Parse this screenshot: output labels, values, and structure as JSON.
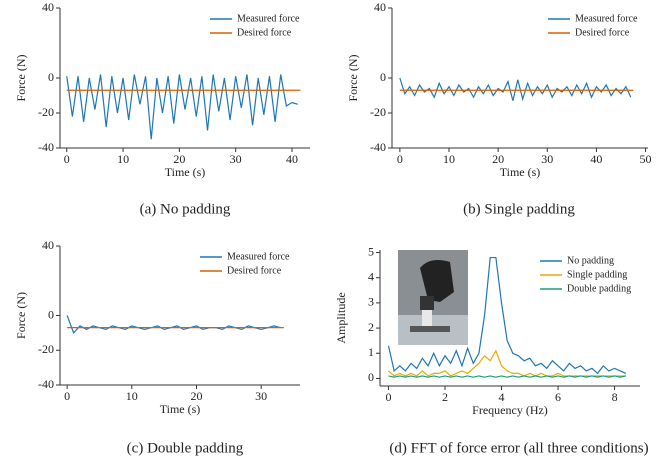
{
  "chart_data": [
    {
      "type": "line",
      "caption": "(a) No padding",
      "xlabel": "Time (s)",
      "ylabel": "Force (N)",
      "xlim": [
        -1.2,
        43.2
      ],
      "ylim": [
        -40,
        40
      ],
      "xticks": [
        0,
        10,
        20,
        30,
        40
      ],
      "yticks": [
        -40,
        -20,
        0,
        40
      ],
      "legend": "upper right",
      "series": [
        {
          "name": "Measured force",
          "color": "#1f77b4",
          "x": [
            0,
            1,
            2,
            3,
            4,
            5,
            6,
            7,
            8,
            9,
            10,
            11,
            12,
            13,
            14,
            15,
            16,
            17,
            18,
            19,
            20,
            21,
            22,
            23,
            24,
            25,
            26,
            27,
            28,
            29,
            30,
            31,
            32,
            33,
            34,
            35,
            36,
            37,
            38,
            39,
            40,
            41
          ],
          "values": [
            1,
            -22,
            1,
            -25,
            0,
            -18,
            2,
            -28,
            1,
            -20,
            0,
            -24,
            2,
            -15,
            1,
            -35,
            0,
            -20,
            1,
            -26,
            2,
            -18,
            0,
            -22,
            1,
            -30,
            2,
            -19,
            0,
            -24,
            1,
            -17,
            2,
            -27,
            0,
            -21,
            1,
            -25,
            2,
            -16,
            -14,
            -15
          ]
        },
        {
          "name": "Desired force",
          "color": "#d95f02",
          "x": [
            0,
            41.5
          ],
          "values": [
            -7,
            -7
          ]
        }
      ]
    },
    {
      "type": "line",
      "caption": "(b) Single padding",
      "xlabel": "Time (s)",
      "ylabel": "Force (N)",
      "xlim": [
        -1.6,
        50.5
      ],
      "ylim": [
        -40,
        40
      ],
      "xticks": [
        0,
        10,
        20,
        30,
        40,
        50
      ],
      "yticks": [
        -40,
        -20,
        0,
        40
      ],
      "legend": "upper right",
      "series": [
        {
          "name": "Measured force",
          "color": "#1f77b4",
          "x": [
            0,
            1,
            2,
            3,
            4,
            5,
            6,
            7,
            8,
            9,
            10,
            11,
            12,
            13,
            14,
            15,
            16,
            17,
            18,
            19,
            20,
            21,
            22,
            23,
            24,
            25,
            26,
            27,
            28,
            29,
            30,
            31,
            32,
            33,
            34,
            35,
            36,
            37,
            38,
            39,
            40,
            41,
            42,
            43,
            44,
            45,
            46,
            47
          ],
          "values": [
            0,
            -9,
            -5,
            -10,
            -4,
            -8,
            -6,
            -11,
            -3,
            -9,
            -5,
            -10,
            -4,
            -8,
            -6,
            -11,
            -5,
            -9,
            -4,
            -10,
            -6,
            -8,
            -2,
            -13,
            -1,
            -12,
            -3,
            -10,
            -5,
            -9,
            -4,
            -11,
            -6,
            -8,
            -5,
            -10,
            -4,
            -9,
            -3,
            -11,
            -5,
            -8,
            -4,
            -10,
            -6,
            -9,
            -5,
            -11
          ]
        },
        {
          "name": "Desired force",
          "color": "#d95f02",
          "x": [
            0,
            47.5
          ],
          "values": [
            -7,
            -7
          ]
        }
      ]
    },
    {
      "type": "line",
      "caption": "(c) Double padding",
      "xlabel": "Time (s)",
      "ylabel": "Force (N)",
      "xlim": [
        -1.1,
        36
      ],
      "ylim": [
        -40,
        40
      ],
      "xticks": [
        0,
        10,
        20,
        30
      ],
      "yticks": [
        -40,
        -20,
        0,
        40
      ],
      "legend": "upper right",
      "series": [
        {
          "name": "Measured force",
          "color": "#1f77b4",
          "x": [
            0,
            1,
            2,
            3,
            4,
            5,
            6,
            7,
            8,
            9,
            10,
            11,
            12,
            13,
            14,
            15,
            16,
            17,
            18,
            19,
            20,
            21,
            22,
            23,
            24,
            25,
            26,
            27,
            28,
            29,
            30,
            31,
            32,
            33
          ],
          "values": [
            0,
            -10,
            -6,
            -8,
            -6,
            -7,
            -8,
            -6,
            -7,
            -8,
            -6,
            -7,
            -8,
            -7,
            -6,
            -8,
            -7,
            -6,
            -8,
            -7,
            -6,
            -8,
            -7,
            -7,
            -8,
            -6,
            -7,
            -8,
            -6,
            -7,
            -8,
            -7,
            -6,
            -7
          ]
        },
        {
          "name": "Desired force",
          "color": "#d95f02",
          "x": [
            0,
            33.5
          ],
          "values": [
            -7,
            -7
          ]
        }
      ]
    },
    {
      "type": "line",
      "caption": "(d) FFT of force error (all three conditions)",
      "xlabel": "Frequency (Hz)",
      "ylabel": "Amplitude",
      "xlim": [
        -0.3,
        8.9
      ],
      "ylim": [
        -0.3,
        5.1
      ],
      "xticks": [
        0,
        2,
        4,
        6,
        8
      ],
      "yticks": [
        0,
        1,
        2,
        3,
        4,
        5
      ],
      "legend": "upper right",
      "series": [
        {
          "name": "No padding",
          "color": "#1f77b4",
          "x": [
            0,
            0.2,
            0.4,
            0.6,
            0.8,
            1,
            1.2,
            1.4,
            1.6,
            1.8,
            2,
            2.2,
            2.4,
            2.6,
            2.8,
            3,
            3.2,
            3.4,
            3.6,
            3.8,
            4,
            4.2,
            4.4,
            4.6,
            4.8,
            5,
            5.2,
            5.4,
            5.6,
            5.8,
            6,
            6.2,
            6.4,
            6.6,
            6.8,
            7,
            7.2,
            7.4,
            7.6,
            7.8,
            8,
            8.2,
            8.4
          ],
          "values": [
            1.3,
            0.3,
            0.5,
            0.3,
            0.6,
            0.4,
            0.8,
            0.5,
            1.0,
            0.5,
            0.9,
            0.6,
            1.1,
            0.5,
            1.2,
            0.6,
            1.0,
            2.5,
            4.8,
            4.8,
            3.0,
            1.5,
            1.0,
            0.9,
            0.7,
            0.8,
            0.5,
            0.6,
            0.4,
            0.7,
            0.5,
            0.3,
            0.6,
            0.4,
            0.5,
            0.3,
            0.4,
            0.2,
            0.5,
            0.3,
            0.4,
            0.3,
            0.2
          ]
        },
        {
          "name": "Single padding",
          "color": "#e6ab02",
          "x": [
            0,
            0.2,
            0.4,
            0.6,
            0.8,
            1,
            1.2,
            1.4,
            1.6,
            1.8,
            2,
            2.2,
            2.4,
            2.6,
            2.8,
            3,
            3.2,
            3.4,
            3.6,
            3.8,
            4,
            4.2,
            4.4,
            4.6,
            4.8,
            5,
            5.2,
            5.4,
            5.6,
            5.8,
            6,
            6.2,
            6.4,
            6.6,
            6.8,
            7,
            7.2,
            7.4,
            7.6,
            7.8,
            8,
            8.2,
            8.4
          ],
          "values": [
            0.3,
            0.1,
            0.2,
            0.1,
            0.2,
            0.1,
            0.3,
            0.1,
            0.2,
            0.2,
            0.3,
            0.1,
            0.2,
            0.3,
            0.2,
            0.4,
            0.6,
            0.9,
            0.7,
            1.1,
            0.5,
            0.3,
            0.2,
            0.2,
            0.1,
            0.2,
            0.1,
            0.2,
            0.1,
            0.1,
            0.2,
            0.1,
            0.1,
            0.1,
            0.1,
            0.1,
            0.1,
            0.1,
            0.1,
            0.1,
            0.1,
            0.1,
            0.1
          ]
        },
        {
          "name": "Double padding",
          "color": "#1b9e77",
          "x": [
            0,
            0.2,
            0.4,
            0.6,
            0.8,
            1,
            1.2,
            1.4,
            1.6,
            1.8,
            2,
            2.2,
            2.4,
            2.6,
            2.8,
            3,
            3.2,
            3.4,
            3.6,
            3.8,
            4,
            4.2,
            4.4,
            4.6,
            4.8,
            5,
            5.2,
            5.4,
            5.6,
            5.8,
            6,
            6.2,
            6.4,
            6.6,
            6.8,
            7,
            7.2,
            7.4,
            7.6,
            7.8,
            8,
            8.2,
            8.4
          ],
          "values": [
            0.1,
            0.05,
            0.1,
            0.05,
            0.1,
            0.05,
            0.1,
            0.05,
            0.1,
            0.05,
            0.1,
            0.05,
            0.1,
            0.05,
            0.1,
            0.05,
            0.1,
            0.05,
            0.1,
            0.05,
            0.1,
            0.05,
            0.1,
            0.05,
            0.1,
            0.05,
            0.1,
            0.05,
            0.1,
            0.05,
            0.1,
            0.05,
            0.1,
            0.05,
            0.1,
            0.05,
            0.1,
            0.05,
            0.1,
            0.05,
            0.1,
            0.05,
            0.1
          ]
        }
      ]
    }
  ]
}
